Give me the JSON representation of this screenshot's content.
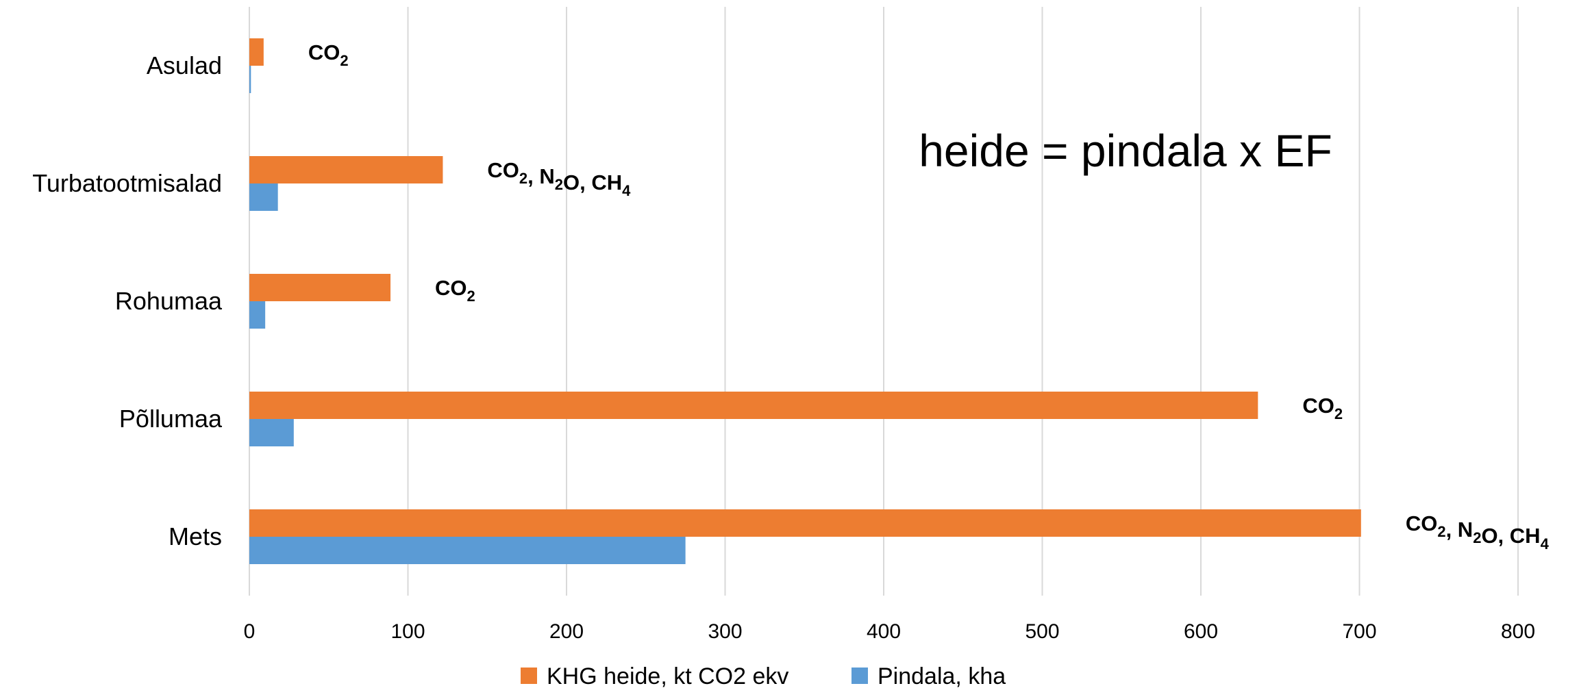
{
  "chart_data": {
    "type": "bar",
    "orientation": "horizontal",
    "categories": [
      "Mets",
      "Põllumaa",
      "Rohumaa",
      "Turbatootmisalad",
      "Asulad"
    ],
    "series": [
      {
        "name": "KHG heide, kt CO2 ekv",
        "values": [
          701,
          636,
          89,
          122,
          9
        ],
        "color": "#ed7d31"
      },
      {
        "name": "Pindala, kha",
        "values": [
          275,
          28,
          10,
          18,
          1
        ],
        "color": "#5b9bd5"
      }
    ],
    "xlim": [
      0,
      800
    ],
    "xticks": [
      0,
      100,
      200,
      300,
      400,
      500,
      600,
      700,
      800
    ],
    "grid": "vertical",
    "legend": "bottom-center",
    "annotations": [
      {
        "category": "Mets",
        "parts": [
          [
            "CO",
            "2"
          ],
          [
            ", N",
            "2"
          ],
          [
            "O, CH",
            "4"
          ]
        ]
      },
      {
        "category": "Põllumaa",
        "parts": [
          [
            "CO",
            "2"
          ]
        ]
      },
      {
        "category": "Rohumaa",
        "parts": [
          [
            "CO",
            "2"
          ]
        ]
      },
      {
        "category": "Turbatootmisalad",
        "parts": [
          [
            "CO",
            "2"
          ],
          [
            ", N",
            "2"
          ],
          [
            "O, CH",
            "4"
          ]
        ]
      },
      {
        "category": "Asulad",
        "parts": [
          [
            "CO",
            "2"
          ]
        ]
      }
    ],
    "formula": "heide = pindala x EF"
  }
}
